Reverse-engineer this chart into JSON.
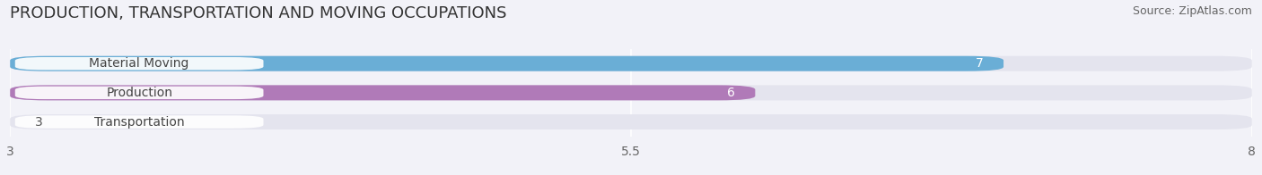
{
  "title": "PRODUCTION, TRANSPORTATION AND MOVING OCCUPATIONS",
  "source": "Source: ZipAtlas.com",
  "categories": [
    "Material Moving",
    "Production",
    "Transportation"
  ],
  "values": [
    7,
    6,
    3
  ],
  "bar_colors": [
    "#6AAED6",
    "#B07AB8",
    "#6DCBCC"
  ],
  "value_label_inside": [
    true,
    true,
    false
  ],
  "xlim": [
    3,
    8
  ],
  "xticks": [
    3,
    5.5,
    8
  ],
  "background_color": "#f2f2f8",
  "bar_bg_color": "#e4e4ee",
  "title_fontsize": 13,
  "source_fontsize": 9,
  "label_fontsize": 10,
  "value_fontsize": 10,
  "bar_height": 0.52,
  "figsize": [
    14.06,
    1.96
  ],
  "dpi": 100
}
